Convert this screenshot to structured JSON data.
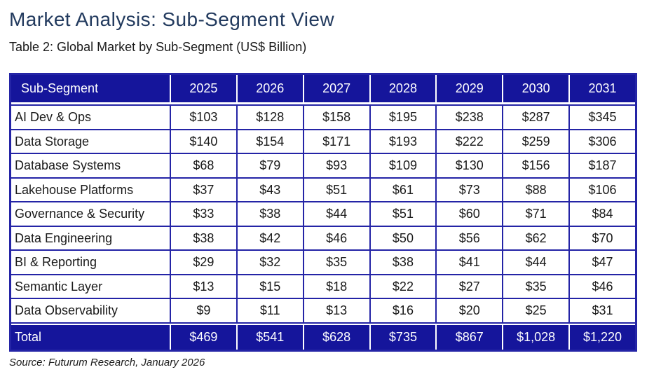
{
  "page": {
    "title": "Market Analysis: Sub-Segment View",
    "subtitle": "Table 2: Global Market by Sub-Segment (US$ Billion)",
    "source": "Source: Futurum Research, January 2026"
  },
  "colors": {
    "header_fill": "#15159B",
    "grid_border": "#2424A6",
    "title_text": "#223A5E",
    "body_text": "#1a1a1a",
    "header_text": "#ffffff"
  },
  "chart_data": {
    "type": "table",
    "title": "Table 2: Global Market by Sub-Segment (US$ Billion)",
    "columns": [
      "Sub-Segment",
      "2025",
      "2026",
      "2027",
      "2028",
      "2029",
      "2030",
      "2031"
    ],
    "rows": [
      {
        "label": "AI Dev & Ops",
        "values": [
          "$103",
          "$128",
          "$158",
          "$195",
          "$238",
          "$287",
          "$345"
        ]
      },
      {
        "label": "Data Storage",
        "values": [
          "$140",
          "$154",
          "$171",
          "$193",
          "$222",
          "$259",
          "$306"
        ]
      },
      {
        "label": "Database Systems",
        "values": [
          "$68",
          "$79",
          "$93",
          "$109",
          "$130",
          "$156",
          "$187"
        ]
      },
      {
        "label": "Lakehouse Platforms",
        "values": [
          "$37",
          "$43",
          "$51",
          "$61",
          "$73",
          "$88",
          "$106"
        ]
      },
      {
        "label": "Governance & Security",
        "values": [
          "$33",
          "$38",
          "$44",
          "$51",
          "$60",
          "$71",
          "$84"
        ]
      },
      {
        "label": "Data Engineering",
        "values": [
          "$38",
          "$42",
          "$46",
          "$50",
          "$56",
          "$62",
          "$70"
        ]
      },
      {
        "label": "BI & Reporting",
        "values": [
          "$29",
          "$32",
          "$35",
          "$38",
          "$41",
          "$44",
          "$47"
        ]
      },
      {
        "label": "Semantic Layer",
        "values": [
          "$13",
          "$15",
          "$18",
          "$22",
          "$27",
          "$35",
          "$46"
        ]
      },
      {
        "label": "Data Observability",
        "values": [
          "$9",
          "$11",
          "$13",
          "$16",
          "$20",
          "$25",
          "$31"
        ]
      }
    ],
    "total": {
      "label": "Total",
      "values": [
        "$469",
        "$541",
        "$628",
        "$735",
        "$867",
        "$1,028",
        "$1,220"
      ]
    }
  }
}
